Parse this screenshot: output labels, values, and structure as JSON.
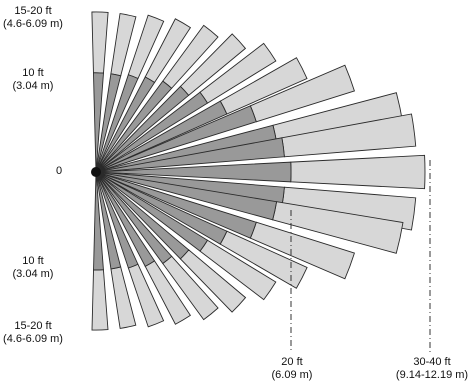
{
  "diagram": {
    "colors": {
      "inner": "#999999",
      "outer": "#d7d7d7",
      "stroke": "#2b2b2b",
      "dash": "#333333"
    },
    "labels": {
      "top_range": {
        "line1": "15-20 ft",
        "line2": "(4.6-6.09 m)"
      },
      "top_mid": {
        "line1": "10 ft",
        "line2": "(3.04 m)"
      },
      "origin": "0",
      "bottom_mid": {
        "line1": "10 ft",
        "line2": "(3.04 m)"
      },
      "bottom_range": {
        "line1": "15-20 ft",
        "line2": "(4.6-6.09 m)"
      },
      "x_mid": {
        "line1": "20 ft",
        "line2": "(6.09 m)"
      },
      "x_far": {
        "line1": "30-40 ft",
        "line2": "(9.14-12.19 m)"
      }
    }
  }
}
